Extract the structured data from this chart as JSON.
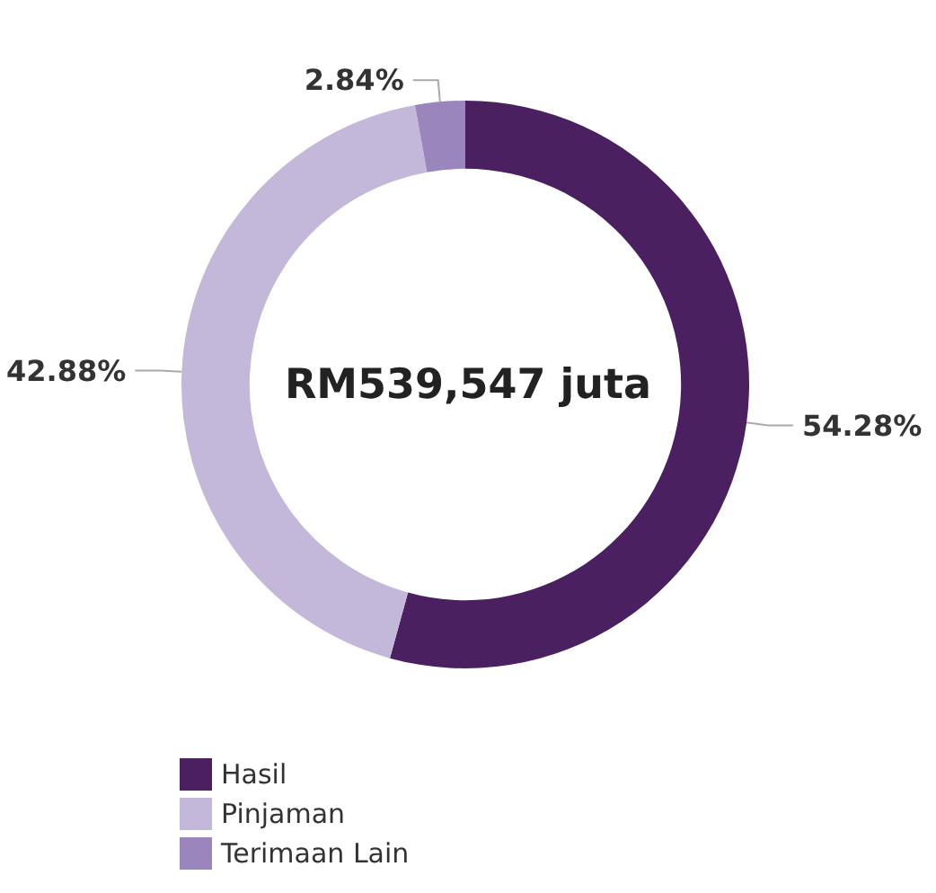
{
  "chart_data": {
    "type": "donut",
    "categories": [
      "Hasil",
      "Pinjaman",
      "Terimaan Lain"
    ],
    "values": [
      54.28,
      42.88,
      2.84
    ],
    "colors": [
      "#4a2060",
      "#c3b8d9",
      "#9a86bd"
    ],
    "value_labels": [
      "54.28%",
      "42.88%",
      "2.84%"
    ],
    "annotations": [
      "RM539,547 juta"
    ],
    "legend": "bottom left"
  }
}
